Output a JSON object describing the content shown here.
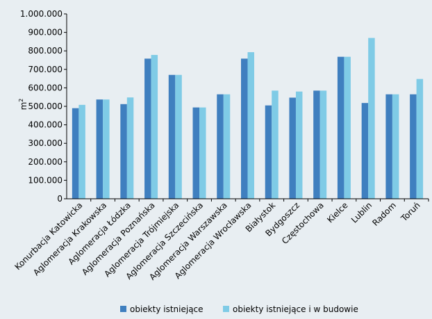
{
  "chart_data": {
    "type": "bar",
    "ylabel": "m",
    "ylabel_superscript": "2",
    "ylim": [
      0,
      1000000
    ],
    "y_ticks": [
      {
        "value": 0,
        "label": "0"
      },
      {
        "value": 100000,
        "label": "100.000"
      },
      {
        "value": 200000,
        "label": "200.000"
      },
      {
        "value": 300000,
        "label": "300.000"
      },
      {
        "value": 400000,
        "label": "400.000"
      },
      {
        "value": 500000,
        "label": "500.000"
      },
      {
        "value": 600000,
        "label": "600.000"
      },
      {
        "value": 700000,
        "label": "700.000"
      },
      {
        "value": 800000,
        "label": "800.000"
      },
      {
        "value": 900000,
        "label": "900.000"
      },
      {
        "value": 1000000,
        "label": "1.000.000"
      }
    ],
    "categories": [
      "Konurbacja Katowicka",
      "Aglomeracja Krakowska",
      "Aglomeracja Łódzka",
      "Aglomeracja Poznańska",
      "Aglomeracja Trójmiejska",
      "Aglomeracja Szczecińska",
      "Aglomeracja Warszawska",
      "Aglomeracja Wrocławska",
      "Białystok",
      "Bydgoszcz",
      "Częstochowa",
      "Kielce",
      "Lublin",
      "Radom",
      "Toruń"
    ],
    "series": [
      {
        "name": "obiekty istniejące",
        "color": "#3f7fbf",
        "values": [
          490000,
          537000,
          512000,
          758000,
          670000,
          494000,
          565000,
          758000,
          505000,
          547000,
          585000,
          768000,
          518000,
          565000,
          565000
        ]
      },
      {
        "name": "obiekty istniejące i w budowie",
        "color": "#7fcbe6",
        "values": [
          508000,
          537000,
          548000,
          778000,
          670000,
          494000,
          565000,
          793000,
          585000,
          580000,
          585000,
          768000,
          870000,
          565000,
          648000
        ]
      }
    ],
    "grid": false,
    "legend_position": "bottom"
  }
}
